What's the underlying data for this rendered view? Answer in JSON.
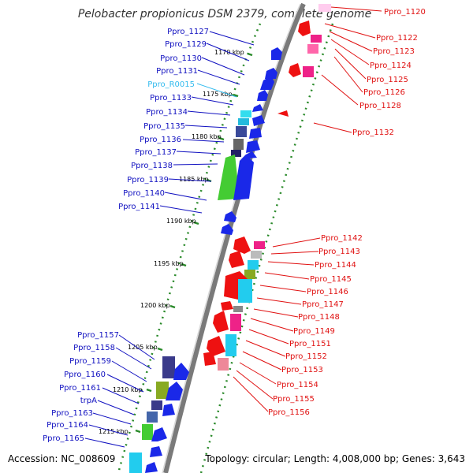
{
  "title": "Pelobacter propionicus DSM 2379, complete genome",
  "accession": "Accession: NC_008609",
  "summary": "Topology: circular; Length: 4,008,000 bp; Genes: 3,643",
  "colors": {
    "forward_label": "#1010c0",
    "rna_label": "#33bbee",
    "reverse_label": "#e01010",
    "backbone": "#7a7a7a",
    "tick_green": "#2a8a2a"
  },
  "kbp_ticks": [
    "1170 kbp",
    "1175 kbp",
    "1180 kbp",
    "1185 kbp",
    "1190 kbp",
    "1195 kbp",
    "1200 kbp",
    "1205 kbp",
    "1210 kbp",
    "1215 kbp"
  ],
  "forward_labels": [
    "Ppro_1127",
    "Ppro_1129",
    "Ppro_1130",
    "Ppro_1131",
    "Ppro_R0015",
    "Ppro_1133",
    "Ppro_1134",
    "Ppro_1135",
    "Ppro_1136",
    "Ppro_1137",
    "Ppro_1138",
    "Ppro_1139",
    "Ppro_1140",
    "Ppro_1141",
    "Ppro_1157",
    "Ppro_1158",
    "Ppro_1159",
    "Ppro_1160",
    "Ppro_1161",
    "trpA",
    "Ppro_1163",
    "Ppro_1164",
    "Ppro_1165"
  ],
  "reverse_labels": [
    "Ppro_1120",
    "Ppro_1122",
    "Ppro_1123",
    "Ppro_1124",
    "Ppro_1125",
    "Ppro_1126",
    "Ppro_1128",
    "Ppro_1132",
    "Ppro_1142",
    "Ppro_1143",
    "Ppro_1144",
    "Ppro_1145",
    "Ppro_1146",
    "Ppro_1147",
    "Ppro_1148",
    "Ppro_1149",
    "Ppro_1151",
    "Ppro_1152",
    "Ppro_1153",
    "Ppro_1154",
    "Ppro_1155",
    "Ppro_1156"
  ]
}
